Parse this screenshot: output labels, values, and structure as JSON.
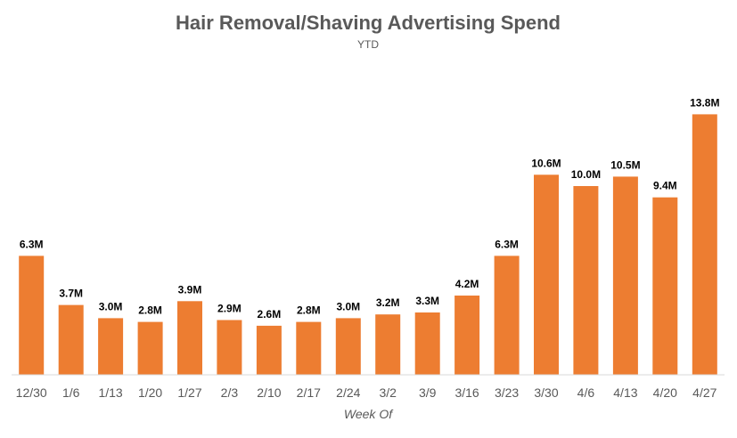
{
  "chart_data": {
    "type": "bar",
    "title": "Hair Removal/Shaving Advertising Spend",
    "subtitle": "YTD",
    "xlabel": "Week Of",
    "ylabel": "",
    "categories": [
      "12/30",
      "1/6",
      "1/13",
      "1/20",
      "1/27",
      "2/3",
      "2/10",
      "2/17",
      "2/24",
      "3/2",
      "3/9",
      "3/16",
      "3/23",
      "3/30",
      "4/6",
      "4/13",
      "4/20",
      "4/27"
    ],
    "values": [
      6.3,
      3.7,
      3.0,
      2.8,
      3.9,
      2.9,
      2.6,
      2.8,
      3.0,
      3.2,
      3.3,
      4.2,
      6.3,
      10.6,
      10.0,
      10.5,
      9.4,
      13.8
    ],
    "data_labels": [
      "6.3M",
      "3.7M",
      "3.0M",
      "2.8M",
      "3.9M",
      "2.9M",
      "2.6M",
      "2.8M",
      "3.0M",
      "3.2M",
      "3.3M",
      "4.2M",
      "6.3M",
      "10.6M",
      "10.0M",
      "10.5M",
      "9.4M",
      "13.8M"
    ],
    "unit": "M",
    "ylim": [
      0,
      14
    ],
    "grid": false,
    "legend": "none",
    "colors": {
      "bar": "#ED7D31",
      "axis": "#D9D9D9",
      "text": "#595959",
      "label": "#000000"
    }
  }
}
